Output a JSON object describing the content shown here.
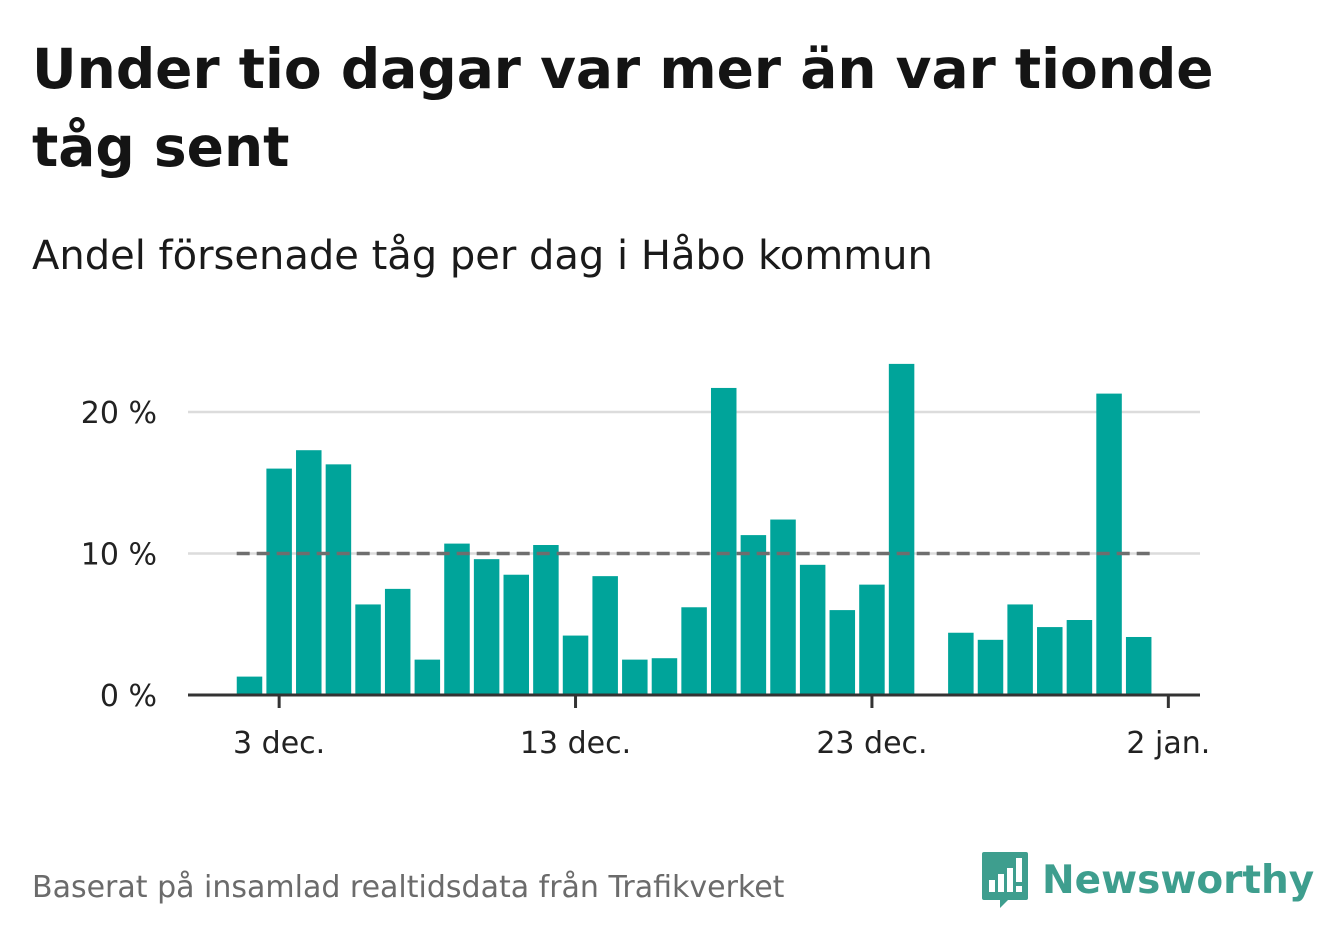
{
  "title": "Under tio dagar var mer än var tionde tåg sent",
  "subtitle": "Andel försenade tåg per dag i Håbo kommun",
  "footer": "Baserat på insamlad realtidsdata från Trafikverket",
  "brand": "Newsworthy",
  "colors": {
    "bar": "#00a49a",
    "reference_line": "#6e6e6e",
    "grid": "#dcdcdc",
    "axis": "#333333",
    "brand": "#3e9e8e"
  },
  "chart_data": {
    "type": "bar",
    "title": "Under tio dagar var mer än var tionde tåg sent",
    "subtitle": "Andel försenade tåg per dag i Håbo kommun",
    "xlabel": "",
    "ylabel": "",
    "x_start": "2023-12-02",
    "x_end": "2024-01-02",
    "categories": [
      "2023-12-02",
      "2023-12-03",
      "2023-12-04",
      "2023-12-05",
      "2023-12-06",
      "2023-12-07",
      "2023-12-08",
      "2023-12-09",
      "2023-12-10",
      "2023-12-11",
      "2023-12-12",
      "2023-12-13",
      "2023-12-14",
      "2023-12-15",
      "2023-12-16",
      "2023-12-17",
      "2023-12-18",
      "2023-12-19",
      "2023-12-20",
      "2023-12-21",
      "2023-12-22",
      "2023-12-23",
      "2023-12-24",
      "2023-12-25",
      "2023-12-26",
      "2023-12-27",
      "2023-12-28",
      "2023-12-29",
      "2023-12-30",
      "2023-12-31",
      "2024-01-01"
    ],
    "values": [
      1.3,
      16.0,
      17.3,
      16.3,
      6.4,
      7.5,
      2.5,
      10.7,
      9.6,
      8.5,
      10.6,
      4.2,
      8.4,
      2.5,
      2.6,
      6.2,
      21.7,
      11.3,
      12.4,
      9.2,
      6.0,
      7.8,
      23.4,
      null,
      4.4,
      3.9,
      6.4,
      4.8,
      5.3,
      21.3,
      4.1
    ],
    "ylim": [
      0,
      24.5
    ],
    "y_ticks": [
      0,
      10,
      20
    ],
    "y_tick_labels": [
      "0 %",
      "10 %",
      "20 %"
    ],
    "x_ticks": [
      "2023-12-03",
      "2023-12-13",
      "2023-12-23",
      "2024-01-02"
    ],
    "x_tick_labels": [
      "3 dec.",
      "13 dec.",
      "23 dec.",
      "2 jan."
    ],
    "reference_line": 10,
    "grid": true,
    "legend": false
  }
}
